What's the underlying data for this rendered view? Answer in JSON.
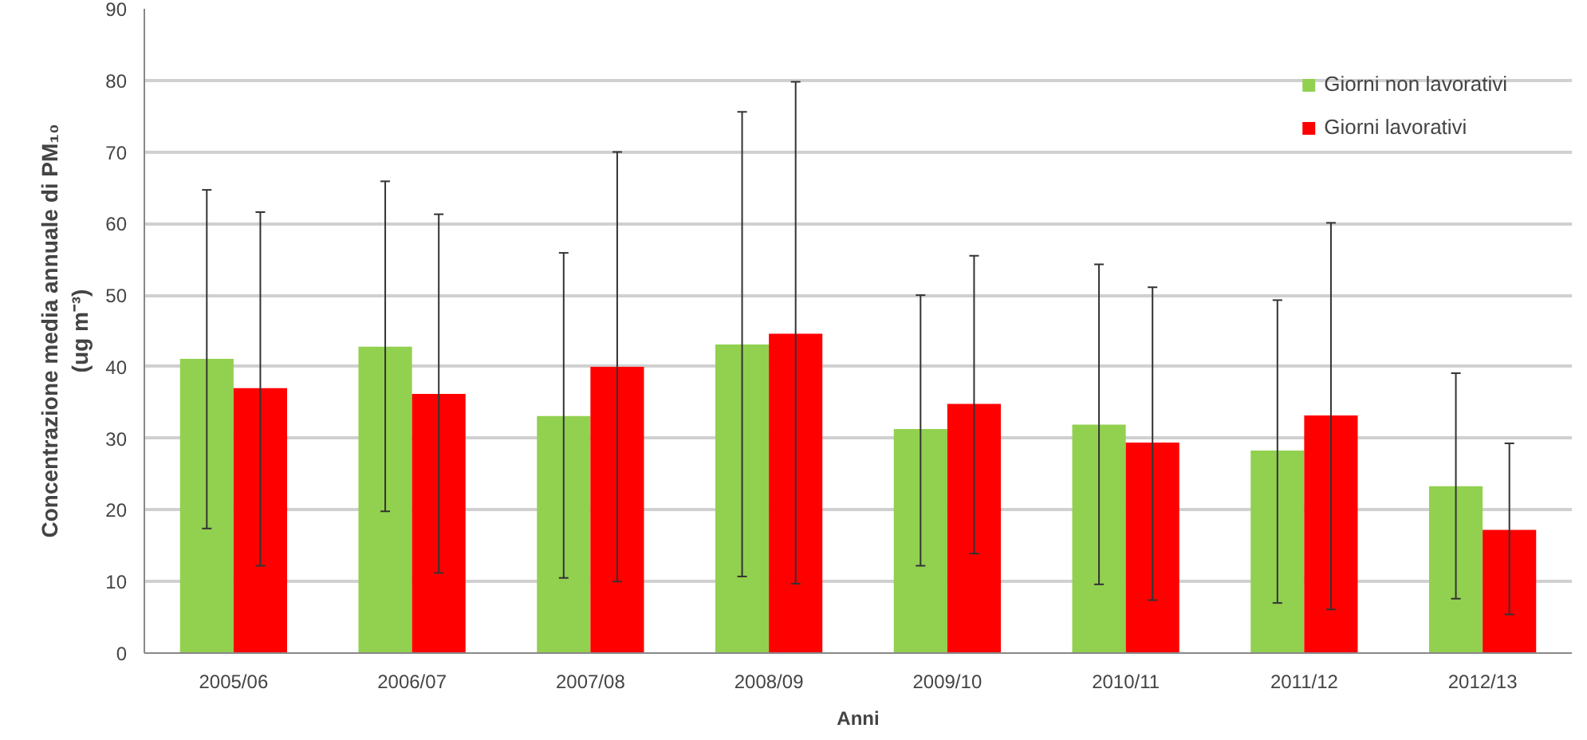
{
  "chart_data": {
    "type": "bar",
    "xlabel": "Anni",
    "ylabel": "Concentrazione media annuale di PM₁₀\n(ug m⁻³)",
    "categories": [
      "2005/06",
      "2006/07",
      "2007/08",
      "2008/09",
      "2009/10",
      "2010/11",
      "2011/12",
      "2012/13"
    ],
    "series": [
      {
        "name": "Giorni non lavorativi",
        "color": "#92d050",
        "values": [
          41.1,
          42.8,
          33.1,
          43.1,
          31.3,
          31.9,
          28.3,
          23.3
        ],
        "errors": [
          [
            17.4,
            64.7
          ],
          [
            19.8,
            65.9
          ],
          [
            10.5,
            55.9
          ],
          [
            10.7,
            75.6
          ],
          [
            12.2,
            50.0
          ],
          [
            9.6,
            54.3
          ],
          [
            7.0,
            49.3
          ],
          [
            7.6,
            39.1
          ]
        ]
      },
      {
        "name": "Giorni lavorativi",
        "color": "#ff0000",
        "values": [
          37.0,
          36.2,
          40.0,
          44.6,
          34.8,
          29.4,
          33.2,
          17.2
        ],
        "errors": [
          [
            12.2,
            61.6
          ],
          [
            11.2,
            61.3
          ],
          [
            10.0,
            70.0
          ],
          [
            9.7,
            79.8
          ],
          [
            13.9,
            55.5
          ],
          [
            7.4,
            51.1
          ],
          [
            6.1,
            60.1
          ],
          [
            5.4,
            29.3
          ]
        ]
      }
    ],
    "ylim": [
      0,
      90
    ],
    "yticks": [
      0,
      10,
      20,
      30,
      40,
      50,
      60,
      70,
      80,
      90
    ],
    "grid": "y",
    "legend": "top right"
  }
}
